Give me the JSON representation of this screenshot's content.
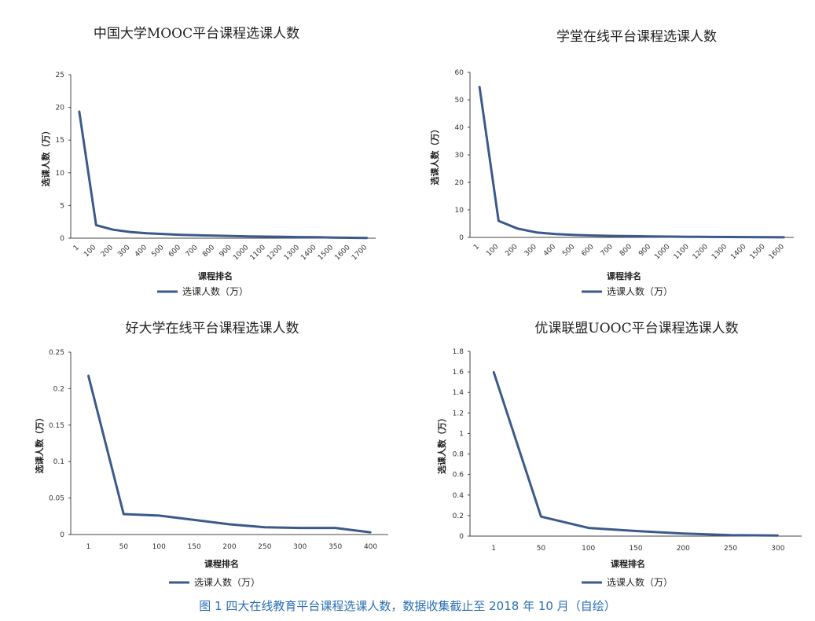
{
  "caption": "图 1 四大在线教育平台课程选课人数，数据收集截止至 2018 年 10 月（自绘）",
  "line_color": "#3b5a8c",
  "chart_data": [
    {
      "type": "line",
      "title": "中国大学MOOC平台课程选课人数",
      "xlabel": "课程排名",
      "ylabel": "选课人数（万）",
      "legend": "选课人数（万）",
      "ylim": [
        0,
        25
      ],
      "yticks": [
        "0",
        "5",
        "10",
        "15",
        "20",
        "25"
      ],
      "ytick_values": [
        0,
        5,
        10,
        15,
        20,
        25
      ],
      "categories": [
        "1",
        "100",
        "200",
        "300",
        "400",
        "500",
        "600",
        "700",
        "800",
        "900",
        "1000",
        "1100",
        "1200",
        "1300",
        "1400",
        "1500",
        "1600",
        "1700"
      ],
      "values": [
        19.4,
        2.0,
        1.3,
        0.95,
        0.75,
        0.62,
        0.52,
        0.45,
        0.38,
        0.33,
        0.28,
        0.24,
        0.2,
        0.17,
        0.14,
        0.1,
        0.06,
        0.03
      ]
    },
    {
      "type": "line",
      "title": "学堂在线平台课程选课人数",
      "xlabel": "课程排名",
      "ylabel": "选课人数（万）",
      "legend": "选课人数（万）",
      "ylim": [
        0,
        60
      ],
      "yticks": [
        "0",
        "10",
        "20",
        "30",
        "40",
        "50",
        "60"
      ],
      "ytick_values": [
        0,
        10,
        20,
        30,
        40,
        50,
        60
      ],
      "categories": [
        "1",
        "100",
        "200",
        "300",
        "400",
        "500",
        "600",
        "700",
        "800",
        "900",
        "1000",
        "1100",
        "1200",
        "1300",
        "1400",
        "1500",
        "1600"
      ],
      "values": [
        54.8,
        6.0,
        3.2,
        1.8,
        1.2,
        0.9,
        0.7,
        0.55,
        0.45,
        0.35,
        0.28,
        0.22,
        0.17,
        0.13,
        0.1,
        0.07,
        0.04
      ]
    },
    {
      "type": "line",
      "title": "好大学在线平台课程选课人数",
      "xlabel": "课程排名",
      "ylabel": "选课人数（万）",
      "legend": "选课人数（万）",
      "ylim": [
        0,
        0.25
      ],
      "yticks": [
        "0",
        "0.05",
        "0.1",
        "0.15",
        "0.2",
        "0.25"
      ],
      "ytick_values": [
        0,
        0.05,
        0.1,
        0.15,
        0.2,
        0.25
      ],
      "categories": [
        "1",
        "50",
        "100",
        "150",
        "200",
        "250",
        "300",
        "350",
        "400"
      ],
      "values": [
        0.218,
        0.028,
        0.026,
        0.02,
        0.014,
        0.01,
        0.009,
        0.009,
        0.003
      ]
    },
    {
      "type": "line",
      "title": "优课联盟UOOC平台课程选课人数",
      "xlabel": "课程排名",
      "ylabel": "选课人数（万）",
      "legend": "选课人数（万）",
      "ylim": [
        0,
        1.8
      ],
      "yticks": [
        "0",
        "0.2",
        "0.4",
        "0.6",
        "0.8",
        "1",
        "1.2",
        "1.4",
        "1.6",
        "1.8"
      ],
      "ytick_values": [
        0,
        0.2,
        0.4,
        0.6,
        0.8,
        1,
        1.2,
        1.4,
        1.6,
        1.8
      ],
      "categories": [
        "1",
        "50",
        "100",
        "150",
        "200",
        "250",
        "300"
      ],
      "values": [
        1.6,
        0.19,
        0.08,
        0.05,
        0.025,
        0.01,
        0.005
      ]
    }
  ]
}
